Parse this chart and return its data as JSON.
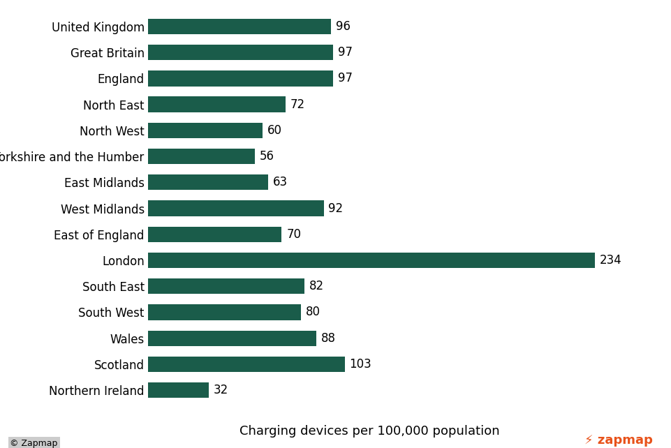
{
  "categories": [
    "United Kingdom",
    "Great Britain",
    "England",
    "North East",
    "North West",
    "Yorkshire and the Humber",
    "East Midlands",
    "West Midlands",
    "East of England",
    "London",
    "South East",
    "South West",
    "Wales",
    "Scotland",
    "Northern Ireland"
  ],
  "values": [
    96,
    97,
    97,
    72,
    60,
    56,
    63,
    92,
    70,
    234,
    82,
    80,
    88,
    103,
    32
  ],
  "bar_color": "#1a5c4a",
  "background_color": "#ffffff",
  "xlabel": "Charging devices per 100,000 population",
  "xlabel_fontsize": 13,
  "value_fontsize": 12,
  "label_fontsize": 12,
  "bar_height": 0.6,
  "xlim": [
    0,
    260
  ],
  "zapmap_color": "#e8521a",
  "copyright_text": "© Zapmap",
  "copyright_fontsize": 9
}
